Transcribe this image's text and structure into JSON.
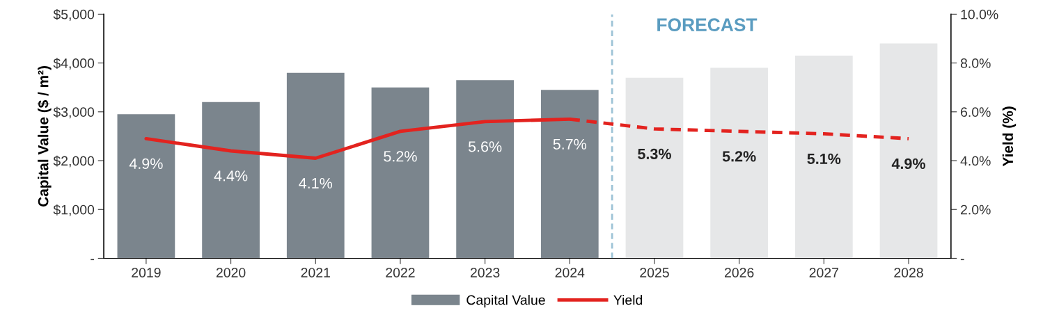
{
  "chart_data": {
    "type": "bar",
    "x": [
      2019,
      2020,
      2021,
      2022,
      2023,
      2024,
      2025,
      2026,
      2027,
      2028
    ],
    "xlim": [
      2018.5,
      2028.5
    ],
    "xticks": [
      2019,
      2020,
      2021,
      2022,
      2023,
      2024,
      2025,
      2026,
      2027,
      2028
    ],
    "ylabel": "Capital Value ($ / m²)",
    "y2label": "Yield (%)",
    "ylim": [
      0,
      5000
    ],
    "yticks": [
      {
        "value": 0,
        "label": "-"
      },
      {
        "value": 1000,
        "label": "$1,000"
      },
      {
        "value": 2000,
        "label": "$2,000"
      },
      {
        "value": 3000,
        "label": "$3,000"
      },
      {
        "value": 4000,
        "label": "$4,000"
      },
      {
        "value": 5000,
        "label": "$5,000"
      }
    ],
    "y2lim": [
      0,
      10
    ],
    "y2ticks": [
      {
        "value": 0,
        "label": "-"
      },
      {
        "value": 2,
        "label": "2.0%"
      },
      {
        "value": 4,
        "label": "4.0%"
      },
      {
        "value": 6,
        "label": "6.0%"
      },
      {
        "value": 8,
        "label": "8.0%"
      },
      {
        "value": 10,
        "label": "10.0%"
      }
    ],
    "series": [
      {
        "name": "Capital Value",
        "color": "#7b858d",
        "colors": [
          "#7b858d",
          "#7b858d",
          "#7b858d",
          "#7b858d",
          "#7b858d",
          "#7b858d",
          "#e6e7e8",
          "#e6e7e8",
          "#e6e7e8",
          "#e6e7e8"
        ],
        "values": [
          2950,
          3200,
          3800,
          3500,
          3650,
          3450,
          3700,
          3900,
          4150,
          4400
        ]
      },
      {
        "name": "Yield",
        "type": "line",
        "axis": "y2",
        "color": "#e3231f",
        "line_style": "solid",
        "values": [
          4.9,
          4.4,
          4.1,
          5.2,
          5.6,
          5.7,
          null,
          null,
          null,
          null
        ],
        "value_labels": [
          "4.9%",
          "4.4%",
          "4.1%",
          "5.2%",
          "5.6%",
          "5.7%",
          null,
          null,
          null,
          null
        ]
      },
      {
        "type": "line",
        "axis": "y2",
        "color": "#e3231f",
        "line_style": "dashed",
        "values": [
          null,
          null,
          null,
          null,
          null,
          5.7,
          5.3,
          5.2,
          5.1,
          4.9
        ],
        "value_labels": [
          null,
          null,
          null,
          null,
          null,
          null,
          "5.3%",
          "5.2%",
          "5.1%",
          "4.9%"
        ]
      }
    ],
    "ref_lines": [
      {
        "axis": "x",
        "value": 2024.5,
        "label": "FORECAST",
        "color": "#9dc3d6",
        "line_style": "dashed"
      }
    ],
    "legend": "bottom",
    "grid": false
  }
}
